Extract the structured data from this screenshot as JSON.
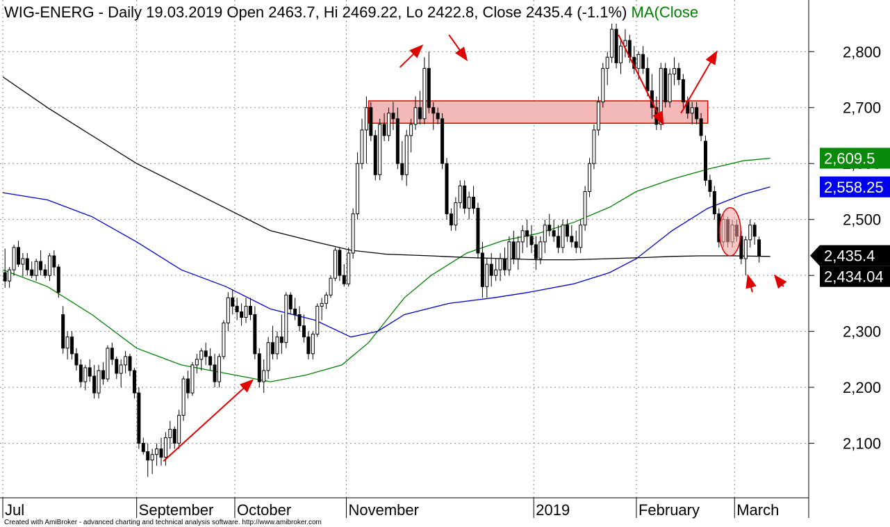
{
  "header": {
    "symbol": "WIG-ENERG",
    "info": " - Daily 19.03.2019 Open 2463.7, Hi 2469.22, Lo 2422.8, Close 2435.4 (-1.1%) ",
    "ma_label": "MA(Close"
  },
  "footer": "Created with AmiBroker - advanced charting and technical analysis software. http://www.amibroker.com",
  "colors": {
    "ma_green": "#008000",
    "ma_blue": "#0000cc",
    "ma_black": "#000000",
    "zone_fill": "#f4b8b8",
    "zone_stroke": "#e00000",
    "arrow": "#e00000"
  },
  "badges": [
    {
      "label": "2,609.5",
      "value": 2609.5,
      "bg": "#0a8a0a",
      "fg": "#ffffff",
      "shape": "rect"
    },
    {
      "label": "2,558.25",
      "value": 2558.25,
      "bg": "#0000ee",
      "fg": "#ffffff",
      "shape": "rect"
    },
    {
      "label": "2,435.4",
      "value": 2435.4,
      "bg": "#000000",
      "fg": "#ffffff",
      "shape": "arrow"
    },
    {
      "label": "2,434.04",
      "value": 2434.04,
      "bg": "#000000",
      "fg": "#ffffff",
      "shape": "rect"
    }
  ],
  "chart_data": {
    "type": "candlestick",
    "ylim": [
      2010,
      2855
    ],
    "yticks": [
      2100,
      2200,
      2300,
      2400,
      2500,
      2600,
      2700,
      2800
    ],
    "ytick_labels": [
      "2,100",
      "2,200",
      "2,300",
      "2,400",
      "2,500",
      "2,600",
      "2,700",
      "2,800"
    ],
    "xlim": [
      0,
      180
    ],
    "month_labels": [
      {
        "label": "Jul",
        "x": 0
      },
      {
        "label": "September",
        "x": 30
      },
      {
        "label": "October",
        "x": 52
      },
      {
        "label": "November",
        "x": 77
      },
      {
        "label": "2019",
        "x": 119
      },
      {
        "label": "February",
        "x": 142
      },
      {
        "label": "March",
        "x": 164
      }
    ],
    "candles": [
      [
        2405,
        2448,
        2378,
        2390
      ],
      [
        2390,
        2415,
        2378,
        2410
      ],
      [
        2410,
        2455,
        2400,
        2450
      ],
      [
        2450,
        2462,
        2415,
        2420
      ],
      [
        2420,
        2440,
        2398,
        2430
      ],
      [
        2430,
        2440,
        2400,
        2410
      ],
      [
        2410,
        2425,
        2395,
        2400
      ],
      [
        2400,
        2430,
        2390,
        2425
      ],
      [
        2425,
        2445,
        2400,
        2410
      ],
      [
        2410,
        2420,
        2395,
        2400
      ],
      [
        2400,
        2440,
        2390,
        2435
      ],
      [
        2435,
        2445,
        2400,
        2415
      ],
      [
        2415,
        2420,
        2360,
        2370
      ],
      [
        2330,
        2345,
        2260,
        2270
      ],
      [
        2270,
        2300,
        2250,
        2290
      ],
      [
        2290,
        2300,
        2250,
        2260
      ],
      [
        2260,
        2270,
        2230,
        2240
      ],
      [
        2240,
        2250,
        2200,
        2210
      ],
      [
        2210,
        2240,
        2195,
        2235
      ],
      [
        2235,
        2250,
        2210,
        2220
      ],
      [
        2220,
        2240,
        2180,
        2190
      ],
      [
        2190,
        2240,
        2180,
        2230
      ],
      [
        2230,
        2245,
        2205,
        2215
      ],
      [
        2215,
        2275,
        2210,
        2270
      ],
      [
        2270,
        2280,
        2240,
        2250
      ],
      [
        2250,
        2255,
        2215,
        2225
      ],
      [
        2225,
        2250,
        2200,
        2240
      ],
      [
        2240,
        2265,
        2225,
        2255
      ],
      [
        2255,
        2260,
        2220,
        2230
      ],
      [
        2230,
        2235,
        2180,
        2190
      ],
      [
        2190,
        2200,
        2090,
        2100
      ],
      [
        2100,
        2110,
        2080,
        2085
      ],
      [
        2085,
        2100,
        2040,
        2070
      ],
      [
        2070,
        2090,
        2045,
        2080
      ],
      [
        2080,
        2100,
        2060,
        2090
      ],
      [
        2090,
        2110,
        2060,
        2075
      ],
      [
        2075,
        2120,
        2060,
        2110
      ],
      [
        2110,
        2140,
        2090,
        2125
      ],
      [
        2125,
        2130,
        2090,
        2100
      ],
      [
        2100,
        2160,
        2090,
        2150
      ],
      [
        2150,
        2220,
        2140,
        2215
      ],
      [
        2215,
        2230,
        2180,
        2190
      ],
      [
        2190,
        2245,
        2185,
        2240
      ],
      [
        2240,
        2260,
        2225,
        2250
      ],
      [
        2250,
        2270,
        2230,
        2265
      ],
      [
        2265,
        2280,
        2240,
        2255
      ],
      [
        2255,
        2270,
        2230,
        2240
      ],
      [
        2240,
        2260,
        2200,
        2210
      ],
      [
        2210,
        2260,
        2200,
        2255
      ],
      [
        2255,
        2320,
        2250,
        2315
      ],
      [
        2315,
        2370,
        2300,
        2360
      ],
      [
        2360,
        2375,
        2330,
        2345
      ],
      [
        2345,
        2360,
        2320,
        2335
      ],
      [
        2335,
        2350,
        2310,
        2325
      ],
      [
        2325,
        2360,
        2315,
        2345
      ],
      [
        2345,
        2360,
        2320,
        2330
      ],
      [
        2330,
        2345,
        2250,
        2260
      ],
      [
        2260,
        2270,
        2200,
        2210
      ],
      [
        2210,
        2250,
        2190,
        2230
      ],
      [
        2230,
        2290,
        2215,
        2280
      ],
      [
        2280,
        2310,
        2250,
        2260
      ],
      [
        2260,
        2300,
        2250,
        2290
      ],
      [
        2290,
        2330,
        2260,
        2280
      ],
      [
        2280,
        2370,
        2270,
        2365
      ],
      [
        2365,
        2370,
        2330,
        2340
      ],
      [
        2340,
        2360,
        2320,
        2330
      ],
      [
        2330,
        2345,
        2300,
        2310
      ],
      [
        2310,
        2330,
        2280,
        2290
      ],
      [
        2290,
        2300,
        2250,
        2260
      ],
      [
        2260,
        2300,
        2250,
        2295
      ],
      [
        2295,
        2350,
        2290,
        2345
      ],
      [
        2345,
        2360,
        2320,
        2350
      ],
      [
        2350,
        2370,
        2340,
        2365
      ],
      [
        2365,
        2400,
        2360,
        2395
      ],
      [
        2395,
        2450,
        2390,
        2445
      ],
      [
        2445,
        2450,
        2390,
        2400
      ],
      [
        2400,
        2420,
        2380,
        2385
      ],
      [
        2385,
        2450,
        2380,
        2440
      ],
      [
        2440,
        2520,
        2430,
        2510
      ],
      [
        2510,
        2620,
        2500,
        2600
      ],
      [
        2600,
        2680,
        2590,
        2660
      ],
      [
        2660,
        2720,
        2600,
        2700
      ],
      [
        2700,
        2710,
        2640,
        2650
      ],
      [
        2650,
        2660,
        2570,
        2580
      ],
      [
        2580,
        2680,
        2570,
        2670
      ],
      [
        2670,
        2690,
        2640,
        2650
      ],
      [
        2650,
        2700,
        2640,
        2690
      ],
      [
        2690,
        2710,
        2660,
        2680
      ],
      [
        2680,
        2700,
        2590,
        2600
      ],
      [
        2600,
        2640,
        2570,
        2580
      ],
      [
        2580,
        2660,
        2560,
        2650
      ],
      [
        2650,
        2680,
        2620,
        2670
      ],
      [
        2670,
        2720,
        2660,
        2700
      ],
      [
        2700,
        2730,
        2670,
        2680
      ],
      [
        2680,
        2790,
        2670,
        2770
      ],
      [
        2770,
        2800,
        2690,
        2700
      ],
      [
        2700,
        2710,
        2660,
        2690
      ],
      [
        2690,
        2700,
        2670,
        2680
      ],
      [
        2680,
        2690,
        2590,
        2600
      ],
      [
        2600,
        2610,
        2500,
        2510
      ],
      [
        2510,
        2520,
        2480,
        2490
      ],
      [
        2490,
        2540,
        2480,
        2530
      ],
      [
        2530,
        2570,
        2520,
        2560
      ],
      [
        2560,
        2570,
        2510,
        2520
      ],
      [
        2520,
        2550,
        2500,
        2540
      ],
      [
        2540,
        2560,
        2510,
        2520
      ],
      [
        2520,
        2530,
        2430,
        2440
      ],
      [
        2440,
        2460,
        2360,
        2380
      ],
      [
        2380,
        2430,
        2360,
        2420
      ],
      [
        2420,
        2440,
        2380,
        2400
      ],
      [
        2400,
        2430,
        2390,
        2410
      ],
      [
        2410,
        2440,
        2390,
        2430
      ],
      [
        2430,
        2450,
        2400,
        2410
      ],
      [
        2410,
        2470,
        2400,
        2460
      ],
      [
        2460,
        2480,
        2420,
        2430
      ],
      [
        2430,
        2470,
        2410,
        2460
      ],
      [
        2460,
        2490,
        2440,
        2480
      ],
      [
        2480,
        2500,
        2450,
        2470
      ],
      [
        2470,
        2490,
        2440,
        2455
      ],
      [
        2455,
        2470,
        2410,
        2430
      ],
      [
        2430,
        2470,
        2420,
        2460
      ],
      [
        2460,
        2500,
        2440,
        2490
      ],
      [
        2490,
        2510,
        2470,
        2480
      ],
      [
        2480,
        2500,
        2460,
        2470
      ],
      [
        2470,
        2490,
        2440,
        2450
      ],
      [
        2450,
        2500,
        2440,
        2490
      ],
      [
        2490,
        2500,
        2460,
        2470
      ],
      [
        2470,
        2490,
        2450,
        2460
      ],
      [
        2460,
        2480,
        2440,
        2450
      ],
      [
        2450,
        2500,
        2440,
        2490
      ],
      [
        2490,
        2560,
        2480,
        2550
      ],
      [
        2550,
        2610,
        2540,
        2600
      ],
      [
        2600,
        2670,
        2590,
        2660
      ],
      [
        2660,
        2720,
        2650,
        2710
      ],
      [
        2710,
        2780,
        2700,
        2770
      ],
      [
        2770,
        2800,
        2740,
        2790
      ],
      [
        2790,
        2850,
        2780,
        2840
      ],
      [
        2840,
        2850,
        2770,
        2780
      ],
      [
        2780,
        2820,
        2760,
        2810
      ],
      [
        2810,
        2840,
        2790,
        2820
      ],
      [
        2820,
        2830,
        2780,
        2790
      ],
      [
        2790,
        2810,
        2760,
        2770
      ],
      [
        2770,
        2800,
        2750,
        2795
      ],
      [
        2795,
        2810,
        2760,
        2770
      ],
      [
        2770,
        2790,
        2720,
        2730
      ],
      [
        2730,
        2760,
        2680,
        2700
      ],
      [
        2700,
        2720,
        2660,
        2670
      ],
      [
        2670,
        2780,
        2660,
        2770
      ],
      [
        2770,
        2780,
        2700,
        2710
      ],
      [
        2710,
        2770,
        2700,
        2760
      ],
      [
        2760,
        2790,
        2740,
        2770
      ],
      [
        2770,
        2780,
        2740,
        2750
      ],
      [
        2750,
        2760,
        2700,
        2710
      ],
      [
        2710,
        2720,
        2680,
        2690
      ],
      [
        2690,
        2710,
        2670,
        2700
      ],
      [
        2700,
        2710,
        2670,
        2680
      ],
      [
        2680,
        2690,
        2640,
        2650
      ],
      [
        2640,
        2650,
        2560,
        2570
      ],
      [
        2570,
        2580,
        2540,
        2550
      ],
      [
        2550,
        2560,
        2500,
        2510
      ],
      [
        2510,
        2520,
        2450,
        2460
      ],
      [
        2460,
        2510,
        2450,
        2500
      ],
      [
        2500,
        2505,
        2450,
        2460
      ],
      [
        2460,
        2500,
        2450,
        2490
      ],
      [
        2490,
        2500,
        2460,
        2470
      ],
      [
        2470,
        2480,
        2420,
        2430
      ],
      [
        2430,
        2470,
        2400,
        2463.7
      ],
      [
        2463.7,
        2500,
        2450,
        2490
      ],
      [
        2490,
        2495,
        2455,
        2470
      ],
      [
        2463.7,
        2469.22,
        2422.8,
        2435.4
      ]
    ],
    "series": [
      {
        "name": "",
        "color": "#008000",
        "points": [
          [
            0,
            2410
          ],
          [
            10,
            2380
          ],
          [
            20,
            2330
          ],
          [
            30,
            2270
          ],
          [
            40,
            2240
          ],
          [
            50,
            2225
          ],
          [
            60,
            2210
          ],
          [
            68,
            2222
          ],
          [
            76,
            2240
          ],
          [
            82,
            2280
          ],
          [
            86,
            2320
          ],
          [
            90,
            2360
          ],
          [
            96,
            2400
          ],
          [
            104,
            2440
          ],
          [
            112,
            2462
          ],
          [
            120,
            2475
          ],
          [
            128,
            2495
          ],
          [
            136,
            2522
          ],
          [
            142,
            2550
          ],
          [
            150,
            2572
          ],
          [
            158,
            2590
          ],
          [
            166,
            2605
          ],
          [
            172,
            2609.5
          ]
        ]
      },
      {
        "name": "",
        "color": "#0000cc",
        "points": [
          [
            0,
            2548
          ],
          [
            10,
            2535
          ],
          [
            20,
            2505
          ],
          [
            30,
            2460
          ],
          [
            40,
            2410
          ],
          [
            50,
            2380
          ],
          [
            60,
            2340
          ],
          [
            70,
            2320
          ],
          [
            78,
            2290
          ],
          [
            84,
            2300
          ],
          [
            90,
            2330
          ],
          [
            100,
            2350
          ],
          [
            110,
            2360
          ],
          [
            118,
            2370
          ],
          [
            128,
            2385
          ],
          [
            136,
            2405
          ],
          [
            142,
            2430
          ],
          [
            150,
            2480
          ],
          [
            158,
            2520
          ],
          [
            166,
            2545
          ],
          [
            172,
            2558.25
          ]
        ]
      },
      {
        "name": "",
        "color": "#000000",
        "points": [
          [
            0,
            2755
          ],
          [
            10,
            2700
          ],
          [
            20,
            2650
          ],
          [
            30,
            2600
          ],
          [
            40,
            2560
          ],
          [
            50,
            2520
          ],
          [
            60,
            2480
          ],
          [
            70,
            2460
          ],
          [
            78,
            2445
          ],
          [
            86,
            2438
          ],
          [
            96,
            2435
          ],
          [
            104,
            2432
          ],
          [
            112,
            2430
          ],
          [
            120,
            2428
          ],
          [
            128,
            2428
          ],
          [
            136,
            2430
          ],
          [
            144,
            2432
          ],
          [
            150,
            2434
          ],
          [
            156,
            2435
          ],
          [
            164,
            2435
          ],
          [
            172,
            2434.04
          ]
        ]
      }
    ],
    "annotations": {
      "resistance_zone": {
        "y_low": 2672,
        "y_high": 2712,
        "x_start": 82,
        "x_end": 158
      },
      "ellipse": {
        "x_center": 163,
        "y_center": 2478,
        "x_radius": 2.4,
        "y_radius": 43
      },
      "arrows": [
        {
          "from": [
            36,
            2068
          ],
          "to": [
            56,
            2213
          ]
        },
        {
          "from": [
            89,
            2772
          ],
          "to": [
            94,
            2811
          ]
        },
        {
          "from": [
            100,
            2830
          ],
          "to": [
            104,
            2785
          ]
        },
        {
          "from": [
            138,
            2830
          ],
          "to": [
            148,
            2670
          ]
        },
        {
          "from": [
            152,
            2690
          ],
          "to": [
            160,
            2800
          ]
        },
        {
          "from": [
            168,
            2370
          ],
          "to": [
            167,
            2400
          ]
        },
        {
          "from": [
            175,
            2380
          ],
          "to": [
            173,
            2400
          ]
        }
      ]
    }
  }
}
